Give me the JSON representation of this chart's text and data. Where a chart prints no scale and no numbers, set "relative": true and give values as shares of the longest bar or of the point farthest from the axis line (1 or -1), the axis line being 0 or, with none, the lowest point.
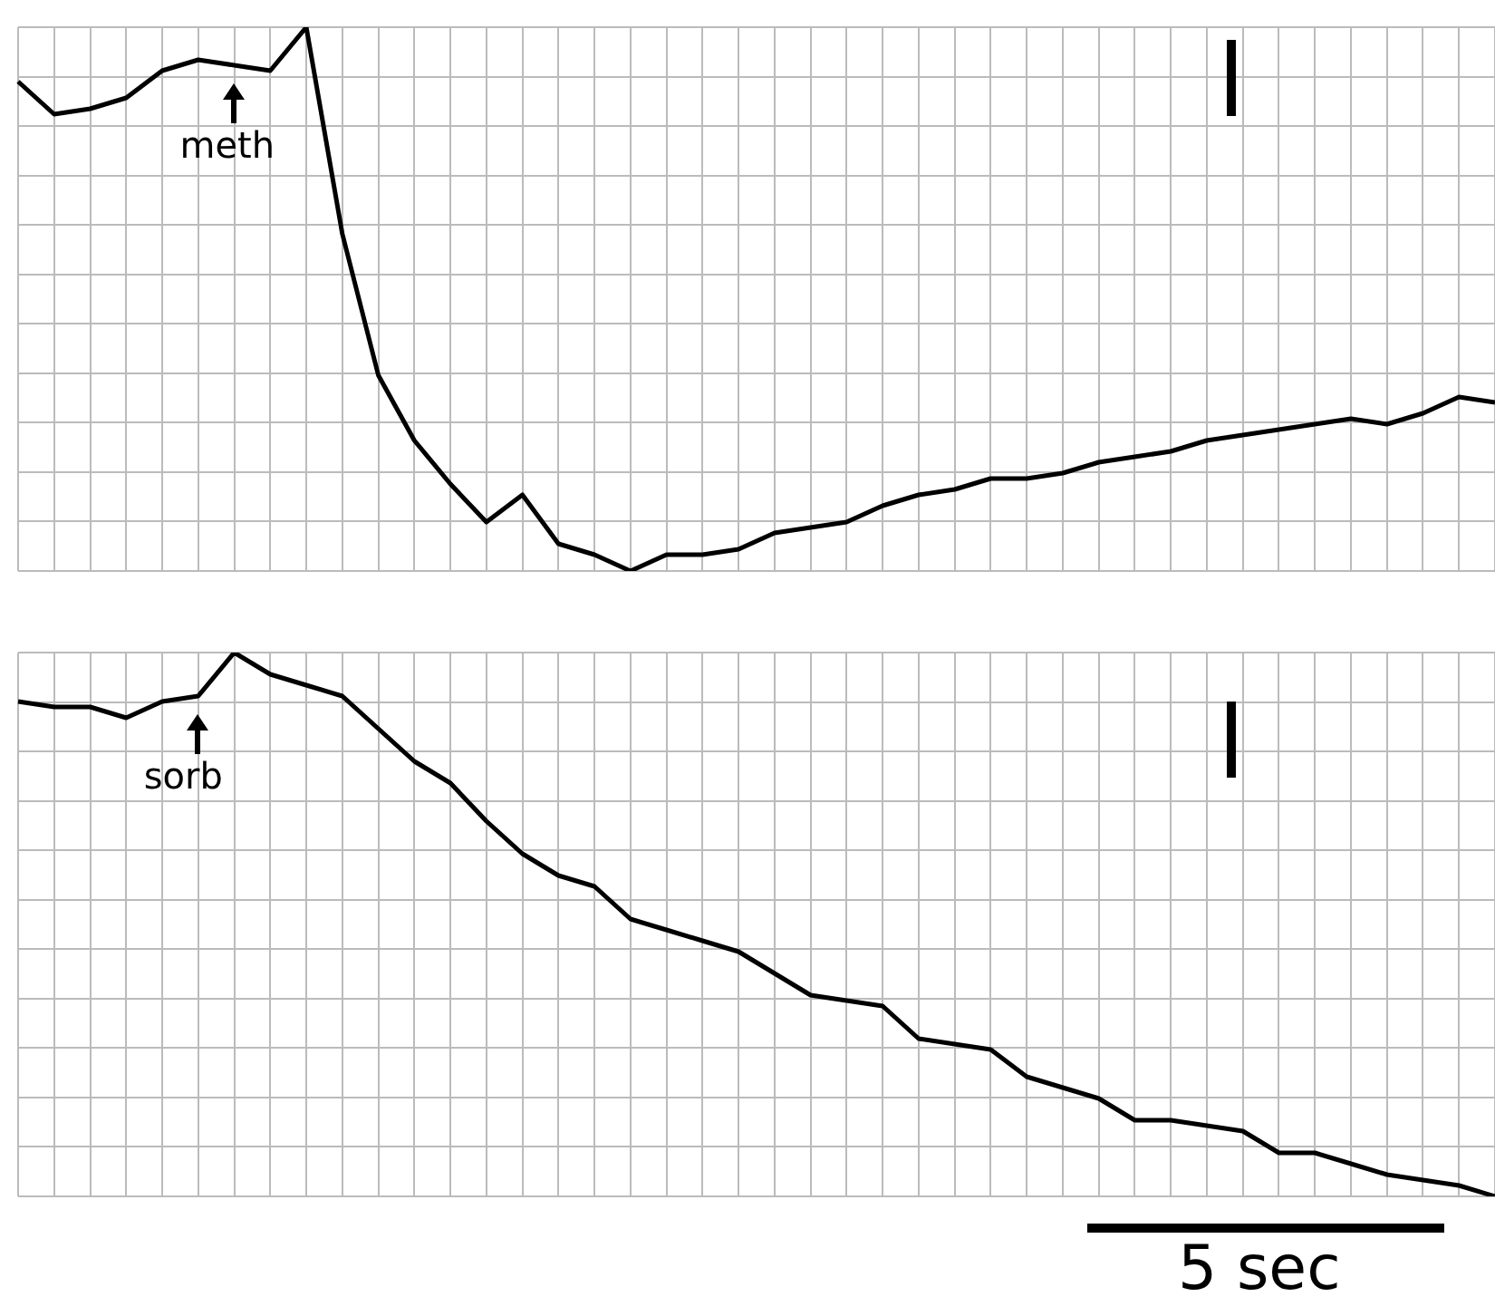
{
  "chart_data": [
    {
      "type": "line",
      "relative": true,
      "grid": true,
      "legend": false,
      "marker": "none",
      "annotations": [
        "meth"
      ],
      "categories": [
        null,
        null,
        null,
        null,
        null,
        null,
        null,
        null,
        null,
        null,
        null,
        null,
        null,
        null,
        null,
        null,
        null,
        null,
        null,
        null,
        null,
        null,
        null,
        null,
        null,
        null,
        null,
        null,
        null,
        null,
        null,
        null,
        null,
        null,
        null,
        null,
        null,
        null,
        null,
        null,
        null,
        null
      ],
      "series": [
        {
          "color": "#000000",
          "values": [
            0.9,
            0.84,
            0.85,
            0.87,
            0.92,
            0.94,
            0.93,
            0.92,
            1,
            0.62,
            0.36,
            0.24,
            0.16,
            0.09,
            0.14,
            0.05,
            0.03,
            0,
            0.03,
            0.03,
            0.04,
            0.07,
            0.08,
            0.09,
            0.12,
            0.14,
            0.15,
            0.17,
            0.17,
            0.18,
            0.2,
            0.21,
            0.22,
            0.24,
            0.25,
            0.26,
            0.27,
            0.28,
            0.27,
            0.29,
            0.32,
            0.31
          ]
        }
      ]
    },
    {
      "type": "line",
      "relative": true,
      "grid": true,
      "legend": false,
      "marker": "none",
      "annotations": [
        "sorb",
        "5 sec"
      ],
      "categories": [
        null,
        null,
        null,
        null,
        null,
        null,
        null,
        null,
        null,
        null,
        null,
        null,
        null,
        null,
        null,
        null,
        null,
        null,
        null,
        null,
        null,
        null,
        null,
        null,
        null,
        null,
        null,
        null,
        null,
        null,
        null,
        null,
        null,
        null,
        null,
        null,
        null,
        null,
        null,
        null,
        null,
        null
      ],
      "series": [
        {
          "color": "#000000",
          "values": [
            0.91,
            0.9,
            0.9,
            0.88,
            0.91,
            0.92,
            1,
            0.96,
            0.94,
            0.92,
            0.86,
            0.8,
            0.76,
            0.69,
            0.63,
            0.59,
            0.57,
            0.51,
            0.49,
            0.47,
            0.45,
            0.41,
            0.37,
            0.36,
            0.35,
            0.29,
            0.28,
            0.27,
            0.22,
            0.2,
            0.18,
            0.14,
            0.14,
            0.13,
            0.12,
            0.08,
            0.08,
            0.06,
            0.04,
            0.03,
            0.02,
            0
          ]
        }
      ]
    }
  ]
}
